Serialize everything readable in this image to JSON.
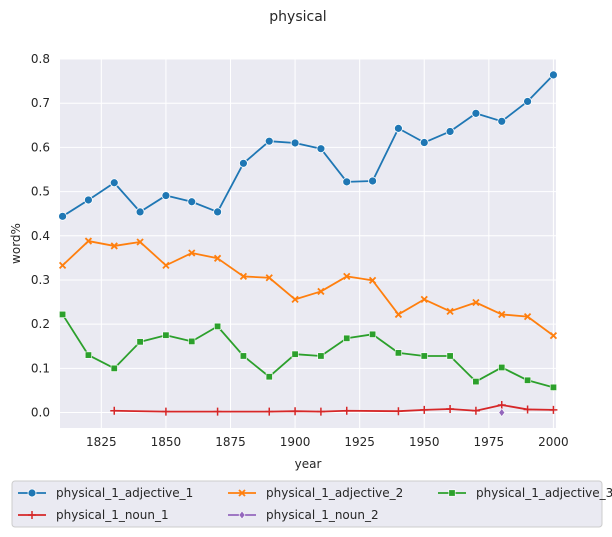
{
  "chart_data": {
    "type": "line",
    "title": "physical",
    "xlabel": "year",
    "ylabel": "word%",
    "xlim": [
      1809,
      2001
    ],
    "ylim": [
      -0.035,
      0.8
    ],
    "xticks": [
      1825,
      1850,
      1875,
      1900,
      1925,
      1950,
      1975,
      2000
    ],
    "yticks": [
      0.0,
      0.1,
      0.2,
      0.3,
      0.4,
      0.5,
      0.6,
      0.7,
      0.8
    ],
    "grid": true,
    "legend_position": "bottom",
    "series": [
      {
        "name": "physical_1_adjective_1",
        "color": "#1f77b4",
        "marker": "circle",
        "x": [
          1810,
          1820,
          1830,
          1840,
          1850,
          1860,
          1870,
          1880,
          1890,
          1900,
          1910,
          1920,
          1930,
          1940,
          1950,
          1960,
          1970,
          1980,
          1990,
          2000
        ],
        "y": [
          0.444,
          0.481,
          0.52,
          0.454,
          0.491,
          0.477,
          0.454,
          0.564,
          0.614,
          0.61,
          0.597,
          0.522,
          0.524,
          0.643,
          0.611,
          0.636,
          0.677,
          0.659,
          0.704,
          0.764
        ]
      },
      {
        "name": "physical_1_adjective_2",
        "color": "#ff7f0e",
        "marker": "x",
        "x": [
          1810,
          1820,
          1830,
          1840,
          1850,
          1860,
          1870,
          1880,
          1890,
          1900,
          1910,
          1920,
          1930,
          1940,
          1950,
          1960,
          1970,
          1980,
          1990,
          2000
        ],
        "y": [
          0.333,
          0.388,
          0.377,
          0.386,
          0.333,
          0.361,
          0.349,
          0.308,
          0.305,
          0.256,
          0.274,
          0.308,
          0.299,
          0.222,
          0.256,
          0.229,
          0.249,
          0.222,
          0.217,
          0.174
        ]
      },
      {
        "name": "physical_1_adjective_3",
        "color": "#2ca02c",
        "marker": "square",
        "x": [
          1810,
          1820,
          1830,
          1840,
          1850,
          1860,
          1870,
          1880,
          1890,
          1900,
          1910,
          1920,
          1930,
          1940,
          1950,
          1960,
          1970,
          1980,
          1990,
          2000
        ],
        "y": [
          0.222,
          0.13,
          0.1,
          0.16,
          0.175,
          0.161,
          0.195,
          0.128,
          0.081,
          0.132,
          0.128,
          0.168,
          0.177,
          0.135,
          0.128,
          0.128,
          0.07,
          0.102,
          0.073,
          0.057
        ]
      },
      {
        "name": "physical_1_noun_1",
        "color": "#d62728",
        "marker": "plus",
        "x": [
          1830,
          1850,
          1870,
          1890,
          1900,
          1910,
          1920,
          1940,
          1950,
          1960,
          1970,
          1980,
          1990,
          2000
        ],
        "y": [
          0.004,
          0.002,
          0.002,
          0.002,
          0.003,
          0.002,
          0.004,
          0.003,
          0.006,
          0.008,
          0.004,
          0.017,
          0.007,
          0.006
        ]
      },
      {
        "name": "physical_1_noun_2",
        "color": "#9467bd",
        "marker": "diamond",
        "x": [
          1980
        ],
        "y": [
          0.0
        ]
      }
    ]
  }
}
